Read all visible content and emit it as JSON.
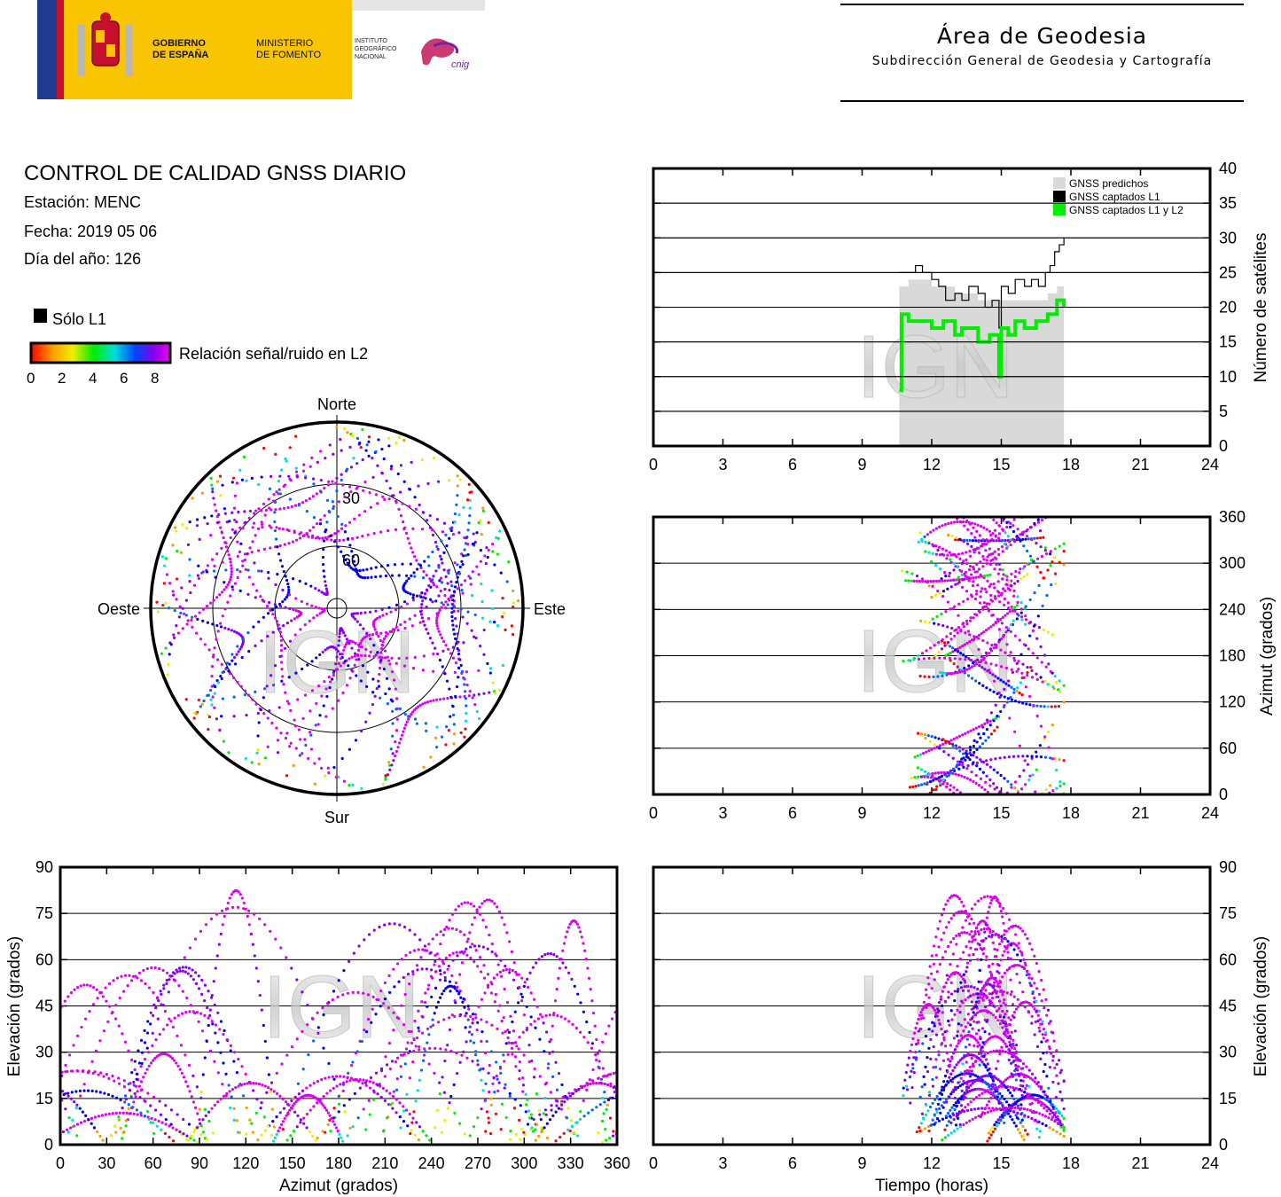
{
  "header": {
    "gov_line1": "GOBIERNO",
    "gov_line2": "DE ESPAÑA",
    "min_line1": "MINISTERIO",
    "min_line2": "DE FOMENTO",
    "inst_line1": "INSTITUTO",
    "inst_line2": "GEOGRÁFICO",
    "inst_line3": "NACIONAL",
    "cnig": "cnig",
    "area_title": "Área de Geodesia",
    "area_subtitle": "Subdirección General de Geodesia y Cartografía"
  },
  "info": {
    "title": "CONTROL DE CALIDAD GNSS DIARIO",
    "station": "Estación: MENC",
    "date": "Fecha: 2019 05 06",
    "doy": "Día del año: 126",
    "legend_l1": "Sólo L1",
    "legend_snr": "Relación señal/ruido en L2",
    "snr_ticks": [
      "0",
      "2",
      "4",
      "6",
      "8"
    ]
  },
  "watermark": "IGN",
  "chart_data": [
    {
      "type": "line",
      "id": "satellites",
      "ylabel": "Número de satélites",
      "xlim": [
        0,
        24
      ],
      "ylim": [
        0,
        40
      ],
      "xticks": [
        0,
        3,
        6,
        9,
        12,
        15,
        18,
        21,
        24
      ],
      "yticks": [
        0,
        5,
        10,
        15,
        20,
        25,
        30,
        35,
        40
      ],
      "legend_position": "top-right",
      "series": [
        {
          "name": "GNSS predichos",
          "color": "#d9d9d9",
          "x": [
            10.6,
            11,
            12,
            13,
            14,
            15,
            16,
            16.5,
            17,
            17.4,
            17.7
          ],
          "y": [
            23,
            24,
            23,
            22,
            21,
            21,
            21,
            21,
            22,
            23,
            24
          ]
        },
        {
          "name": "GNSS captados L1",
          "color": "#000000",
          "x": [
            10.6,
            11,
            11.3,
            11.6,
            12,
            12.3,
            12.6,
            13,
            13.3,
            13.6,
            14,
            14.3,
            14.6,
            14.9,
            15,
            15.3,
            15.6,
            16,
            16.3,
            16.6,
            16.9,
            17.1,
            17.3,
            17.5,
            17.7
          ],
          "y": [
            25,
            25,
            26,
            25,
            24,
            23,
            21,
            22,
            21,
            23,
            22,
            20,
            21,
            17,
            23,
            22,
            24,
            23,
            24,
            23,
            25,
            26,
            28,
            29,
            30
          ]
        },
        {
          "name": "GNSS captados L1 y L2",
          "color": "#00ee00",
          "x": [
            10.6,
            10.7,
            11,
            11.5,
            12,
            12.5,
            13,
            13.3,
            13.6,
            14,
            14.5,
            14.9,
            15,
            15.3,
            15.6,
            16,
            16.5,
            17,
            17.4,
            17.7
          ],
          "y": [
            8,
            19,
            18,
            18,
            17,
            18,
            16,
            17,
            17,
            15,
            16,
            10,
            17,
            16,
            18,
            17,
            18,
            19,
            21,
            20
          ]
        }
      ]
    },
    {
      "type": "scatter",
      "id": "azimuth_time",
      "ylabel": "Azimut (grados)",
      "xlim": [
        0,
        24
      ],
      "ylim": [
        0,
        360
      ],
      "xticks": [
        0,
        3,
        6,
        9,
        12,
        15,
        18,
        21,
        24
      ],
      "yticks": [
        0,
        60,
        120,
        180,
        240,
        300,
        360
      ]
    },
    {
      "type": "scatter",
      "id": "skyplot",
      "north": "Norte",
      "south": "Sur",
      "east": "Este",
      "west": "Oeste",
      "ring_labels": [
        "30",
        "60"
      ]
    },
    {
      "type": "scatter",
      "id": "elev_azimuth",
      "xlabel": "Azimut (grados)",
      "ylabel": "Elevación (grados)",
      "xlim": [
        0,
        360
      ],
      "ylim": [
        0,
        90
      ],
      "xticks": [
        0,
        30,
        60,
        90,
        120,
        150,
        180,
        210,
        240,
        270,
        300,
        330,
        360
      ],
      "yticks": [
        0,
        15,
        30,
        45,
        60,
        75,
        90
      ]
    },
    {
      "type": "scatter",
      "id": "elev_time",
      "xlabel": "Tiempo (horas)",
      "ylabel": "Elevación (grados)",
      "xlim": [
        0,
        24
      ],
      "ylim": [
        0,
        90
      ],
      "xticks": [
        0,
        3,
        6,
        9,
        12,
        15,
        18,
        21,
        24
      ],
      "yticks": [
        0,
        15,
        30,
        45,
        60,
        75,
        90
      ]
    }
  ]
}
